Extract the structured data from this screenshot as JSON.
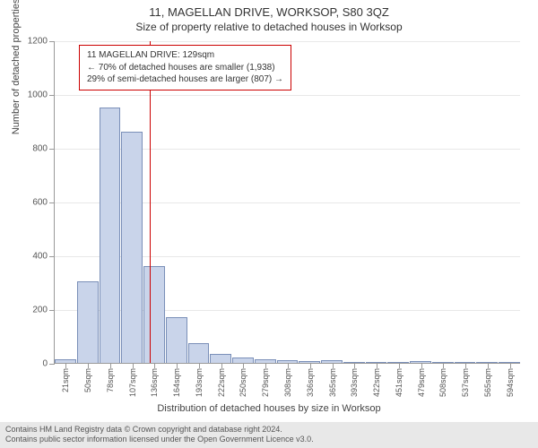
{
  "title": "11, MAGELLAN DRIVE, WORKSOP, S80 3QZ",
  "subtitle": "Size of property relative to detached houses in Worksop",
  "yaxis_title": "Number of detached properties",
  "xaxis_title": "Distribution of detached houses by size in Worksop",
  "annotation": {
    "line1": "11 MAGELLAN DRIVE: 129sqm",
    "line2": "← 70% of detached houses are smaller (1,938)",
    "line3": "29% of semi-detached houses are larger (807) →"
  },
  "footer": {
    "line1": "Contains HM Land Registry data © Crown copyright and database right 2024.",
    "line2": "Contains public sector information licensed under the Open Government Licence v3.0."
  },
  "chart": {
    "type": "histogram",
    "ylim": [
      0,
      1200
    ],
    "ytick_step": 200,
    "bar_fill": "#c9d4ea",
    "bar_stroke": "#7a8fb8",
    "grid_color": "#e8e8e8",
    "axis_color": "#999999",
    "marker_color": "#cc0000",
    "marker_value": 129,
    "x_categories": [
      "21sqm",
      "50sqm",
      "78sqm",
      "107sqm",
      "136sqm",
      "164sqm",
      "193sqm",
      "222sqm",
      "250sqm",
      "279sqm",
      "308sqm",
      "336sqm",
      "365sqm",
      "393sqm",
      "422sqm",
      "451sqm",
      "479sqm",
      "508sqm",
      "537sqm",
      "565sqm",
      "594sqm"
    ],
    "values": [
      15,
      305,
      950,
      860,
      360,
      170,
      75,
      35,
      20,
      12,
      10,
      8,
      10,
      5,
      4,
      3,
      8,
      2,
      2,
      2,
      2
    ],
    "background_color": "#ffffff",
    "title_fontsize": 13,
    "subtitle_fontsize": 12,
    "axis_label_fontsize": 11,
    "tick_fontsize": 10,
    "annotation_fontsize": 10
  }
}
